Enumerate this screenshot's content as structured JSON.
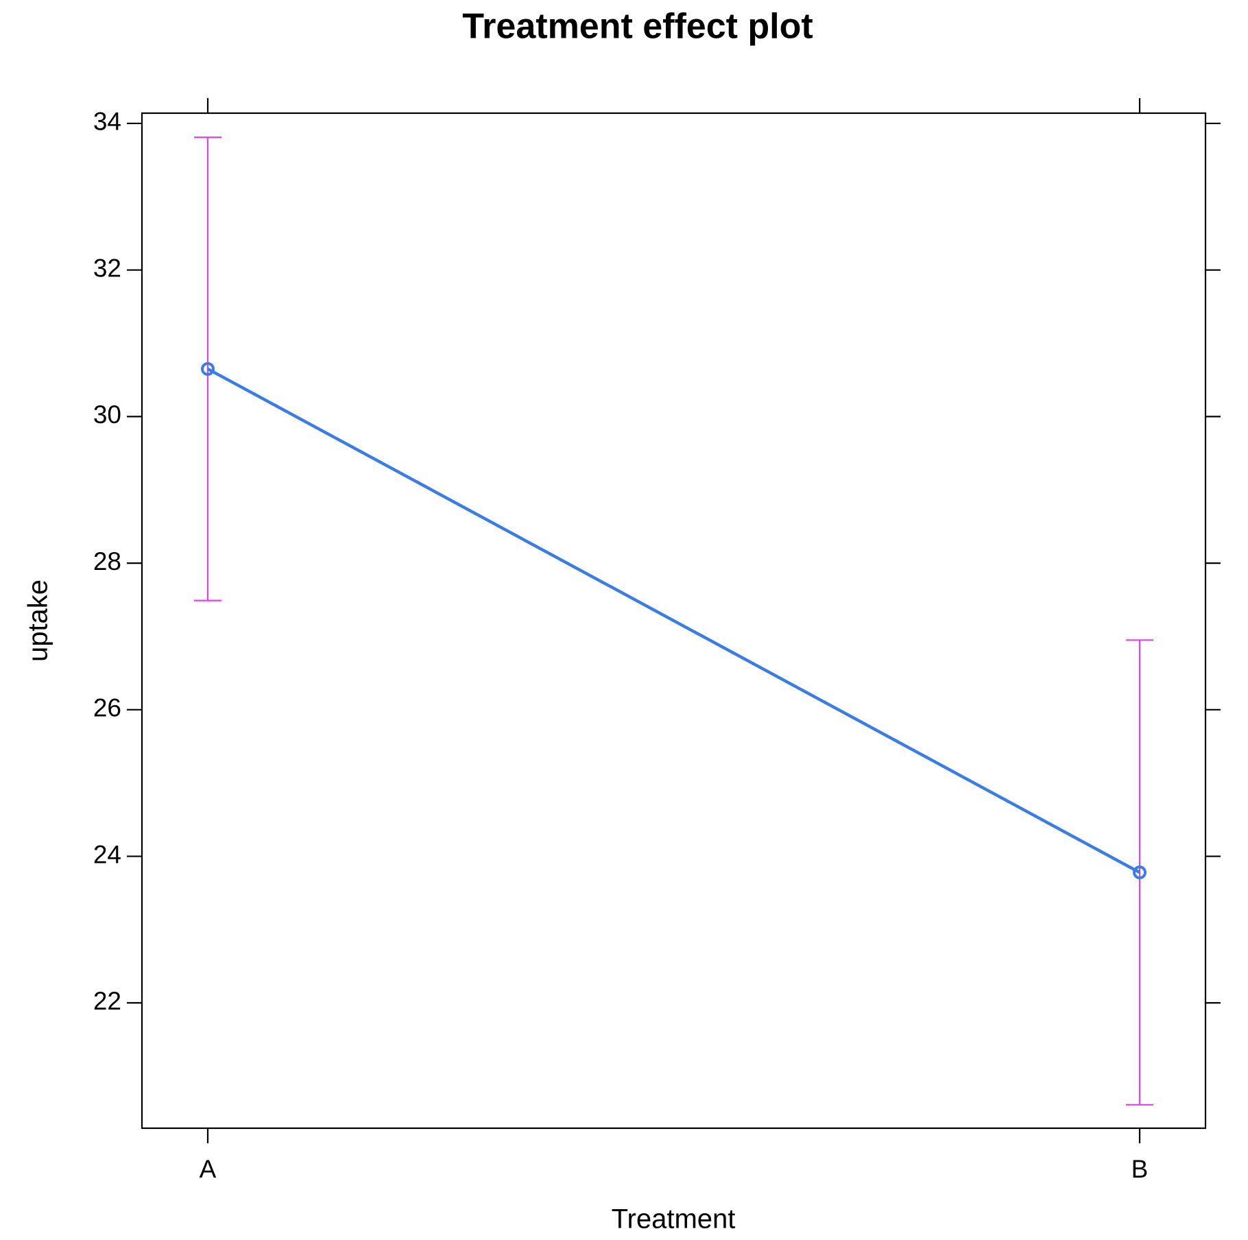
{
  "chart_data": {
    "type": "line",
    "title": "Treatment effect plot",
    "xlabel": "Treatment",
    "ylabel": "uptake",
    "categories": [
      "A",
      "B"
    ],
    "values": [
      30.65,
      23.78
    ],
    "lower": [
      27.49,
      20.61
    ],
    "upper": [
      33.81,
      26.95
    ],
    "color": "#3a7de8",
    "error_color": "#e53fe8",
    "ylim": [
      20.29,
      34.14
    ],
    "yticks": [
      22,
      24,
      26,
      28,
      30,
      32,
      34
    ]
  }
}
